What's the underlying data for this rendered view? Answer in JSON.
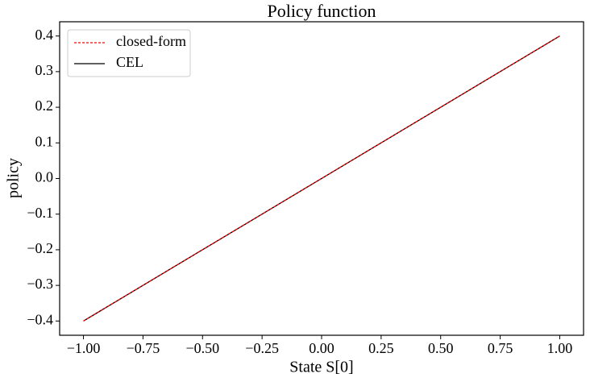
{
  "chart_data": {
    "type": "line",
    "title": "Policy function",
    "x_label": "State S[0]",
    "y_label": "policy",
    "x": [
      -1,
      1
    ],
    "series": [
      {
        "name": "closed-form",
        "color": "#ff0000",
        "dashed": true,
        "values": [
          -0.4,
          0.4
        ]
      },
      {
        "name": "CEL",
        "color": "#000000",
        "dashed": false,
        "values": [
          -0.4,
          0.4
        ]
      }
    ],
    "xlim": [
      -1.1,
      1.1
    ],
    "xticks": [
      {
        "value": -1,
        "label": "−1.00"
      },
      {
        "value": -0.75,
        "label": "−0.75"
      },
      {
        "value": -0.5,
        "label": "−0.50"
      },
      {
        "value": -0.25,
        "label": "−0.25"
      },
      {
        "value": 0,
        "label": "0.00"
      },
      0.25,
      {
        "value": 0.5,
        "label": "0.50"
      },
      0.75,
      {
        "value": 1,
        "label": "1.00"
      }
    ],
    "ylim": [
      -0.44,
      0.44
    ],
    "yticks": [
      {
        "value": -0.4,
        "label": "−0.4"
      },
      {
        "value": -0.3,
        "label": "−0.3"
      },
      {
        "value": -0.2,
        "label": "−0.2"
      },
      {
        "value": -0.1,
        "label": "−0.1"
      },
      {
        "value": 0,
        "label": "0.0"
      },
      0.1,
      0.2,
      0.3,
      0.4
    ],
    "grid": false,
    "legend": "upper left"
  }
}
